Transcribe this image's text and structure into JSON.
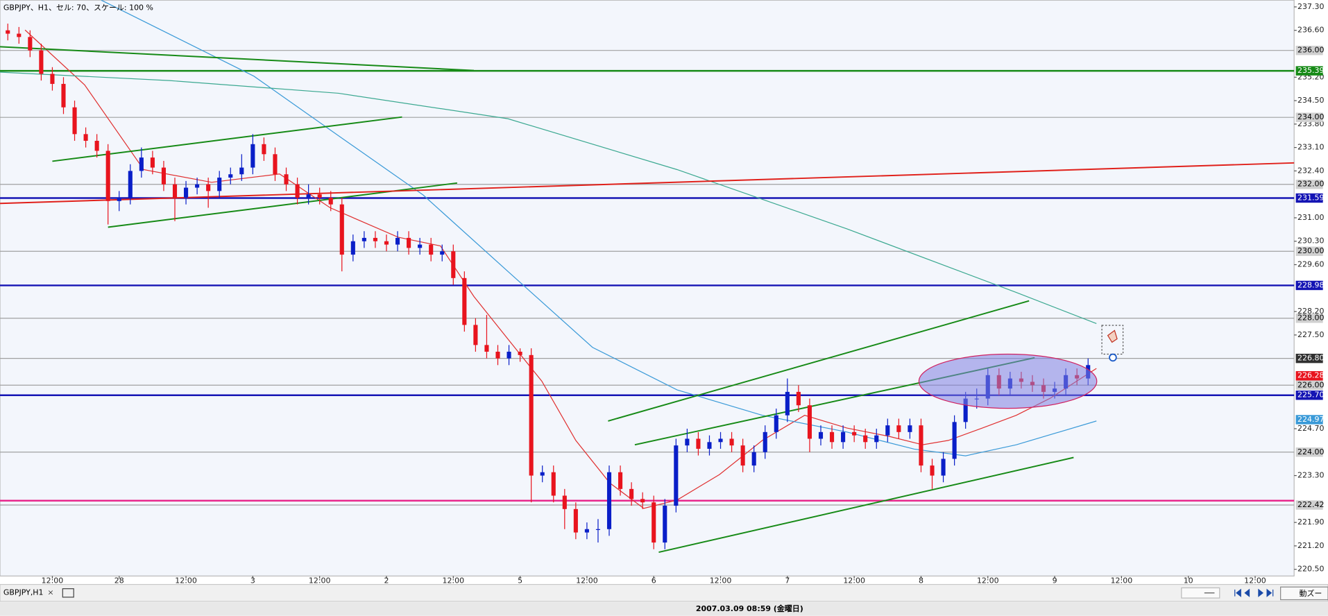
{
  "chart_data": {
    "type": "candlestick",
    "title": "GBPJPY、H1、セル: 70、スケール: 100 %",
    "tab_label": "GBPJPY,H1",
    "tab_close": "×",
    "status": "2007.03.09 08:59 (金曜日)",
    "zoom_button": "動ズー",
    "up_color": "#0a1fc8",
    "down_color": "#e8141e",
    "xlim": [
      -9.4,
      223
    ],
    "ylim": [
      220.3,
      237.5
    ],
    "xticks": [
      {
        "value": 0,
        "label": "12:00"
      },
      {
        "value": 12,
        "label": "28"
      },
      {
        "value": 24,
        "label": "12:00"
      },
      {
        "value": 36,
        "label": "3"
      },
      {
        "value": 48,
        "label": "12:00"
      },
      {
        "value": 60,
        "label": "2"
      },
      {
        "value": 72,
        "label": "12:00"
      },
      {
        "value": 84,
        "label": "5"
      },
      {
        "value": 96,
        "label": "12:00"
      },
      {
        "value": 108,
        "label": "6"
      },
      {
        "value": 120,
        "label": "12:00"
      },
      {
        "value": 132,
        "label": "7"
      },
      {
        "value": 144,
        "label": "12:00"
      },
      {
        "value": 156,
        "label": "8"
      },
      {
        "value": 168,
        "label": "12:00"
      },
      {
        "value": 180,
        "label": "9"
      },
      {
        "value": 192,
        "label": "12:00"
      },
      {
        "value": 204,
        "label": "10"
      },
      {
        "value": 216,
        "label": "12:00"
      }
    ],
    "yticks": [
      {
        "value": 237.3,
        "label": "237.30"
      },
      {
        "value": 236.6,
        "label": "236.60"
      },
      {
        "value": 235.2,
        "label": "235.20"
      },
      {
        "value": 234.5,
        "label": "234.50"
      },
      {
        "value": 233.8,
        "label": "233.80"
      },
      {
        "value": 233.1,
        "label": "233.10"
      },
      {
        "value": 232.4,
        "label": "232.40"
      },
      {
        "value": 231.0,
        "label": "231.00"
      },
      {
        "value": 230.3,
        "label": "230.30"
      },
      {
        "value": 229.6,
        "label": "229.60"
      },
      {
        "value": 228.2,
        "label": "228.20"
      },
      {
        "value": 227.5,
        "label": "227.50"
      },
      {
        "value": 224.7,
        "label": "224.70"
      },
      {
        "value": 223.3,
        "label": "223.30"
      },
      {
        "value": 221.9,
        "label": "221.90"
      },
      {
        "value": 221.2,
        "label": "221.20"
      },
      {
        "value": 220.5,
        "label": "220.50"
      }
    ],
    "grid": false,
    "x": [
      -8,
      -6,
      -4,
      -2,
      0,
      2,
      4,
      6,
      8,
      10,
      12,
      14,
      16,
      18,
      20,
      22,
      24,
      26,
      28,
      30,
      32,
      34,
      36,
      38,
      40,
      42,
      44,
      46,
      48,
      50,
      52,
      54,
      56,
      58,
      60,
      62,
      64,
      66,
      68,
      70,
      72,
      74,
      76,
      78,
      80,
      82,
      84,
      86,
      88,
      90,
      92,
      94,
      96,
      98,
      100,
      102,
      104,
      106,
      108,
      110,
      112,
      114,
      116,
      118,
      120,
      122,
      124,
      126,
      128,
      130,
      132,
      134,
      136,
      138,
      140,
      142,
      144,
      146,
      148,
      150,
      152,
      154,
      156,
      158,
      160,
      162,
      164,
      166,
      168,
      170,
      172,
      174,
      176,
      178,
      180,
      182,
      184,
      186
    ],
    "open": [
      236.6,
      236.5,
      236.4,
      236.0,
      235.3,
      235.0,
      234.3,
      233.5,
      233.3,
      233.0,
      231.5,
      231.6,
      232.4,
      232.8,
      232.5,
      232.0,
      231.6,
      231.9,
      232.0,
      231.8,
      232.2,
      232.3,
      232.5,
      233.2,
      232.9,
      232.3,
      232.0,
      231.6,
      231.7,
      231.6,
      231.4,
      229.9,
      230.3,
      230.4,
      230.3,
      230.2,
      230.4,
      230.1,
      230.2,
      229.9,
      230.0,
      229.2,
      227.8,
      227.2,
      227.0,
      226.8,
      227.0,
      226.9,
      223.3,
      223.4,
      222.7,
      222.3,
      221.6,
      221.7,
      221.7,
      223.4,
      222.9,
      222.6,
      222.5,
      221.3,
      222.4,
      224.2,
      224.4,
      224.1,
      224.3,
      224.4,
      224.2,
      223.6,
      224.0,
      224.6,
      225.1,
      225.8,
      225.4,
      224.4,
      224.6,
      224.3,
      224.6,
      224.5,
      224.3,
      224.5,
      224.8,
      224.6,
      224.8,
      223.6,
      223.3,
      223.8,
      224.9,
      225.6,
      225.6,
      226.3,
      225.9,
      226.2,
      226.1,
      226.0,
      225.8,
      225.9,
      226.3,
      226.2
    ],
    "high": [
      236.8,
      236.7,
      236.6,
      236.2,
      235.5,
      235.2,
      234.5,
      233.7,
      233.5,
      233.2,
      231.8,
      232.6,
      233.1,
      233.0,
      232.7,
      232.2,
      232.1,
      232.2,
      232.2,
      232.4,
      232.5,
      232.9,
      233.5,
      233.4,
      233.1,
      232.5,
      232.2,
      232.0,
      231.9,
      231.8,
      231.6,
      230.5,
      230.6,
      230.6,
      230.5,
      230.6,
      230.6,
      230.4,
      230.4,
      230.2,
      230.2,
      229.4,
      228.0,
      228.1,
      227.2,
      227.2,
      227.1,
      227.1,
      223.6,
      223.6,
      222.9,
      222.5,
      221.9,
      222.0,
      223.6,
      223.6,
      223.1,
      222.8,
      222.7,
      222.6,
      224.4,
      224.7,
      224.6,
      224.5,
      224.6,
      224.6,
      224.4,
      224.2,
      224.8,
      225.3,
      226.2,
      226.0,
      225.6,
      224.8,
      224.8,
      224.8,
      224.8,
      224.7,
      224.7,
      225.0,
      225.0,
      225.0,
      225.0,
      223.8,
      224.0,
      225.1,
      225.8,
      225.9,
      226.5,
      226.5,
      226.4,
      226.4,
      226.3,
      226.2,
      226.1,
      226.5,
      226.5,
      226.8
    ],
    "low": [
      236.3,
      236.2,
      235.8,
      235.1,
      234.8,
      234.1,
      233.3,
      233.1,
      232.8,
      230.8,
      231.2,
      231.4,
      232.2,
      232.3,
      231.8,
      230.9,
      231.4,
      231.7,
      231.3,
      231.6,
      232.0,
      232.1,
      232.3,
      232.7,
      232.1,
      231.8,
      231.4,
      231.4,
      231.4,
      231.2,
      229.4,
      229.7,
      230.1,
      230.1,
      230.0,
      230.0,
      229.9,
      229.9,
      229.7,
      229.7,
      229.0,
      227.6,
      227.0,
      226.8,
      226.6,
      226.6,
      226.7,
      222.5,
      223.1,
      222.5,
      221.7,
      221.4,
      221.4,
      221.3,
      221.5,
      222.7,
      222.4,
      222.3,
      221.1,
      221.1,
      222.2,
      224.0,
      223.9,
      223.9,
      224.1,
      224.0,
      223.4,
      223.4,
      223.8,
      224.4,
      224.9,
      225.2,
      224.0,
      224.2,
      224.1,
      224.1,
      224.3,
      224.1,
      224.1,
      224.3,
      224.4,
      224.4,
      223.4,
      222.9,
      223.1,
      223.6,
      224.7,
      225.3,
      225.4,
      225.7,
      225.7,
      225.9,
      225.8,
      225.6,
      225.6,
      225.7,
      226.0,
      226.0
    ],
    "close": [
      236.5,
      236.4,
      236.0,
      235.3,
      235.0,
      234.3,
      233.5,
      233.3,
      233.0,
      231.5,
      231.6,
      232.4,
      232.8,
      232.5,
      232.0,
      231.6,
      231.9,
      232.0,
      231.8,
      232.2,
      232.3,
      232.5,
      233.2,
      232.9,
      232.3,
      232.0,
      231.6,
      231.7,
      231.6,
      231.4,
      229.9,
      230.3,
      230.4,
      230.3,
      230.2,
      230.4,
      230.1,
      230.2,
      229.9,
      230.0,
      229.2,
      227.8,
      227.2,
      227.0,
      226.8,
      227.0,
      226.9,
      223.3,
      223.4,
      222.7,
      222.3,
      221.6,
      221.7,
      221.7,
      223.4,
      222.9,
      222.6,
      222.5,
      221.3,
      222.4,
      224.2,
      224.4,
      224.1,
      224.3,
      224.4,
      224.2,
      223.6,
      224.0,
      224.6,
      225.1,
      225.8,
      225.4,
      224.4,
      224.6,
      224.3,
      224.6,
      224.5,
      224.3,
      224.5,
      224.8,
      224.6,
      224.8,
      223.6,
      223.3,
      223.8,
      224.9,
      225.6,
      225.6,
      226.3,
      225.9,
      226.2,
      226.1,
      226.0,
      225.8,
      225.9,
      226.3,
      226.2,
      226.6
    ],
    "moving_averages": [
      {
        "color": "#e03030",
        "x": [
          -4.9,
          5.8,
          16.4,
          28.6,
          40.8,
          49.9,
          62.1,
          69.7,
          75.7,
          81.8,
          87.9,
          94.0,
          100.1,
          106.2,
          112.2,
          119.8,
          127.5,
          135.1,
          142.7,
          150.3,
          156.3,
          160.9,
          167.0,
          173.1,
          179.2,
          187.5
        ],
        "values": [
          236.61,
          234.97,
          232.44,
          232.06,
          232.31,
          231.3,
          230.42,
          230.16,
          228.65,
          227.38,
          226.12,
          224.35,
          223.08,
          222.32,
          222.57,
          223.33,
          224.35,
          225.1,
          224.72,
          224.47,
          224.22,
          224.35,
          224.72,
          225.1,
          225.61,
          226.5
        ]
      },
      {
        "color": "#3a9ad8",
        "x": [
          8.8,
          21.0,
          36.2,
          51.4,
          66.6,
          81.8,
          97.0,
          112.2,
          127.5,
          142.7,
          154.8,
          164.0,
          173.1,
          187.5
        ],
        "values": [
          237.5,
          236.49,
          235.23,
          233.45,
          231.68,
          229.4,
          227.13,
          225.86,
          225.1,
          224.6,
          224.09,
          223.89,
          224.22,
          224.93
        ]
      },
      {
        "color": "#3aa890",
        "x": [
          -9.4,
          21.0,
          51.4,
          81.8,
          112.2,
          142.7,
          173.1,
          187.5
        ],
        "values": [
          235.35,
          235.1,
          234.72,
          233.96,
          232.44,
          230.67,
          228.77,
          227.84
        ]
      }
    ],
    "trendlines": [
      {
        "color": "#168a16",
        "x": [
          -9.4,
          75.7
        ],
        "values": [
          236.11,
          235.4
        ]
      },
      {
        "color": "#168a16",
        "x": [
          0,
          62.8
        ],
        "values": [
          232.69,
          234.01
        ]
      },
      {
        "color": "#168a16",
        "x": [
          10.0,
          72.7
        ],
        "values": [
          230.72,
          232.04
        ]
      },
      {
        "color": "#e0201a",
        "x": [
          -9.4,
          223
        ],
        "values": [
          231.43,
          232.64
        ]
      },
      {
        "color": "#168a16",
        "x": [
          99.8,
          175.4
        ],
        "values": [
          224.93,
          228.52
        ]
      },
      {
        "color": "#168a16",
        "x": [
          104.6,
          176.4
        ],
        "values": [
          224.22,
          226.82
        ]
      },
      {
        "color": "#168a16",
        "x": [
          108.9,
          183.4
        ],
        "values": [
          221.01,
          223.84
        ]
      }
    ],
    "hlines": [
      {
        "value": 236.0,
        "label": "236.00",
        "color": "#a0a0a0",
        "box": "#d0d0d0",
        "text_color": "#000000"
      },
      {
        "value": 235.39,
        "label": "235.39",
        "color": "#168a16",
        "box": "#168a16",
        "text_color": "#ffffff"
      },
      {
        "value": 234.0,
        "label": "234.00",
        "color": "#a0a0a0",
        "box": "#d0d0d0",
        "text_color": "#000000"
      },
      {
        "value": 232.0,
        "label": "232.00",
        "color": "#a0a0a0",
        "box": "#d0d0d0",
        "text_color": "#000000"
      },
      {
        "value": 231.59,
        "label": "231.59",
        "color": "#1414b4",
        "box": "#1414b4",
        "text_color": "#ffffff"
      },
      {
        "value": 230.0,
        "label": "230.00",
        "color": "#a0a0a0",
        "box": "#d0d0d0",
        "text_color": "#000000"
      },
      {
        "value": 228.98,
        "label": "228.98",
        "color": "#1414b4",
        "box": "#1414b4",
        "text_color": "#ffffff"
      },
      {
        "value": 228.0,
        "label": "228.00",
        "color": "#a0a0a0",
        "box": "#d0d0d0",
        "text_color": "#000000"
      },
      {
        "value": 226.8,
        "label": "226.80",
        "color": "#a0a0a0",
        "box": "#303030",
        "text_color": "#ffffff"
      },
      {
        "value": 226.0,
        "label": "226.00",
        "color": "#a0a0a0",
        "box": "#d0d0d0",
        "text_color": "#000000"
      },
      {
        "value": 225.7,
        "label": "225.70",
        "color": "#1414b4",
        "box": "#1414b4",
        "text_color": "#ffffff"
      },
      {
        "value": 224.0,
        "label": "224.00",
        "color": "#a0a0a0",
        "box": "#d0d0d0",
        "text_color": "#000000"
      },
      {
        "value": 222.55,
        "color": "#e8288c"
      },
      {
        "value": 222.42,
        "label": "222.42",
        "color": "#a0a0a0",
        "box": "#d0d0d0",
        "text_color": "#000000"
      }
    ],
    "axis_markers": [
      {
        "value": 226.28,
        "label": "226.28",
        "box": "#e8141e",
        "text_color": "#ffffff"
      },
      {
        "value": 224.97,
        "label": "224.97",
        "box": "#3a9ad8",
        "text_color": "#ffffff"
      }
    ]
  }
}
